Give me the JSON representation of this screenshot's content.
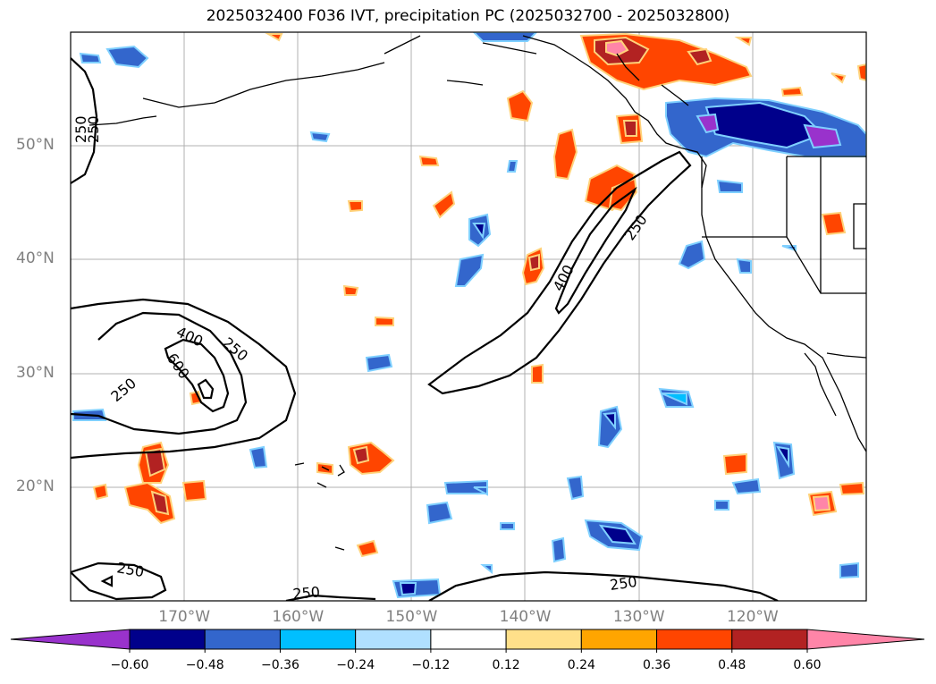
{
  "title": "2025032400 F036 IVT, precipitation PC (2025032700 - 2025032800)",
  "map": {
    "lon_range": [
      -180,
      -110
    ],
    "lat_range": [
      10,
      60
    ],
    "lat_labels": [
      {
        "lat": 50,
        "text": "50°N"
      },
      {
        "lat": 40,
        "text": "40°N"
      },
      {
        "lat": 30,
        "text": "30°N"
      },
      {
        "lat": 20,
        "text": "20°N"
      }
    ],
    "lon_labels": [
      {
        "lon": -170,
        "text": "170°W"
      },
      {
        "lon": -160,
        "text": "160°W"
      },
      {
        "lon": -150,
        "text": "150°W"
      },
      {
        "lon": -140,
        "text": "140°W"
      },
      {
        "lon": -130,
        "text": "130°W"
      },
      {
        "lon": -120,
        "text": "120°W"
      }
    ],
    "ivt_contour_labels": [
      "250",
      "250",
      "400",
      "600",
      "250",
      "250",
      "250",
      "250",
      "400",
      "250",
      "250"
    ]
  },
  "colorbar": {
    "colors": [
      "#9932cc",
      "#00008b",
      "#3366cc",
      "#00bfff",
      "#b0e0ff",
      "#ffffff",
      "#ffe08a",
      "#ffa500",
      "#ff4500",
      "#b22222",
      "#ff85a8"
    ],
    "ticks": [
      "−0.60",
      "−0.48",
      "−0.36",
      "−0.24",
      "−0.12",
      "0.12",
      "0.24",
      "0.36",
      "0.48",
      "0.60"
    ]
  }
}
